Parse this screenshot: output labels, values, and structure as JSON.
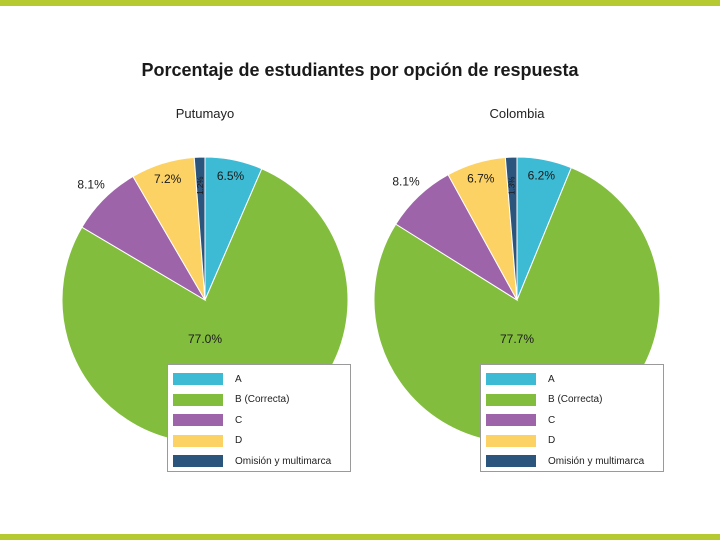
{
  "colors": {
    "A": "#3dbbd4",
    "B": "#82bd3e",
    "C": "#9e64a9",
    "D": "#fdd264",
    "O": "#2c557d",
    "accent_bar": "#b5c930"
  },
  "chart_data": [
    {
      "type": "pie",
      "title": "Porcentaje de estudiantes por opción de respuesta",
      "subtitle": "Putumayo",
      "slices": [
        {
          "key": "A",
          "label": "A",
          "value": 6.5,
          "text": "6.5%"
        },
        {
          "key": "B",
          "label": "B (Correcta)",
          "value": 77.0,
          "text": "77.0%"
        },
        {
          "key": "C",
          "label": "C",
          "value": 8.1,
          "text": "8.1%"
        },
        {
          "key": "D",
          "label": "D",
          "value": 7.2,
          "text": "7.2%"
        },
        {
          "key": "O",
          "label": "Omisión y multimarca",
          "value": 1.2,
          "text": "1.2%"
        }
      ],
      "legend": [
        "A",
        "B (Correcta)",
        "C",
        "D",
        "Omisión y multimarca"
      ]
    },
    {
      "type": "pie",
      "title": "Porcentaje de estudiantes por opción de respuesta",
      "subtitle": "Colombia",
      "slices": [
        {
          "key": "A",
          "label": "A",
          "value": 6.2,
          "text": "6.2%"
        },
        {
          "key": "B",
          "label": "B (Correcta)",
          "value": 77.7,
          "text": "77.7%"
        },
        {
          "key": "C",
          "label": "C",
          "value": 8.1,
          "text": "8.1%"
        },
        {
          "key": "D",
          "label": "D",
          "value": 6.7,
          "text": "6.7%"
        },
        {
          "key": "O",
          "label": "Omisión y multimarca",
          "value": 1.3,
          "text": "1.3%"
        }
      ],
      "legend": [
        "A",
        "B (Correcta)",
        "C",
        "D",
        "Omisión y multimarca"
      ]
    }
  ]
}
